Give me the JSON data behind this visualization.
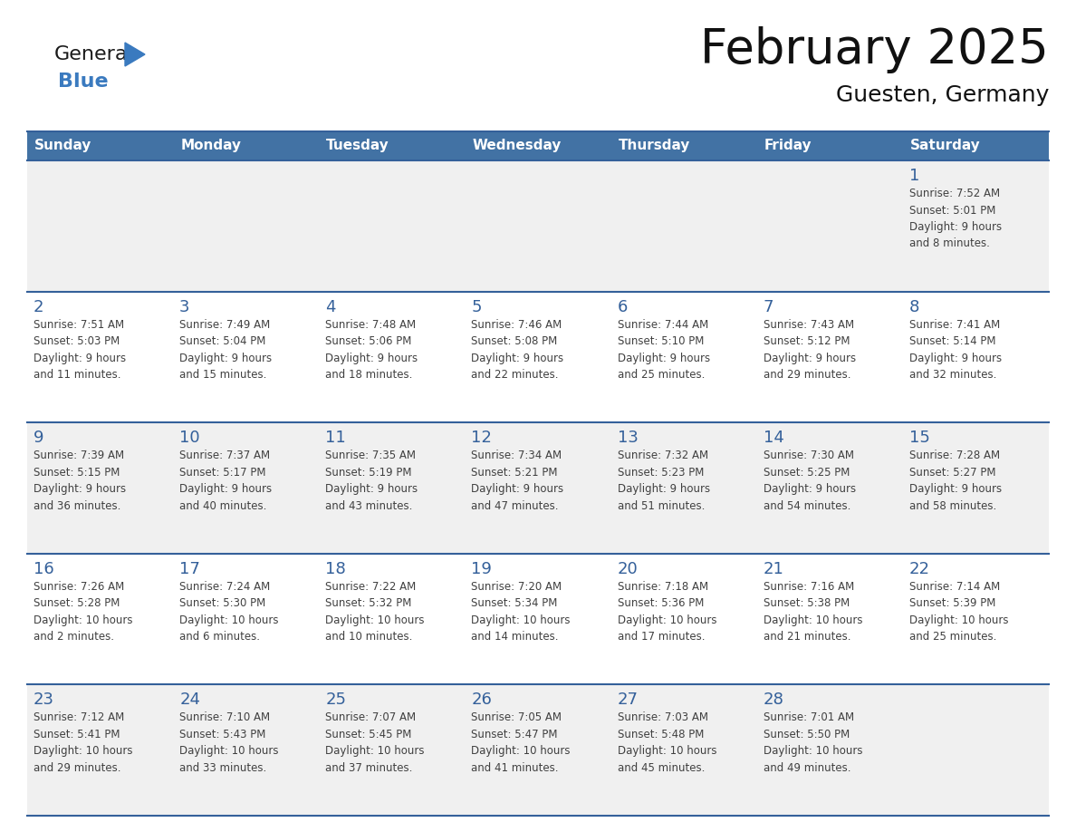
{
  "title": "February 2025",
  "subtitle": "Guesten, Germany",
  "days_of_week": [
    "Sunday",
    "Monday",
    "Tuesday",
    "Wednesday",
    "Thursday",
    "Friday",
    "Saturday"
  ],
  "header_bg": "#4272A4",
  "header_text": "#FFFFFF",
  "row_bg_odd": "#F0F0F0",
  "row_bg_even": "#FFFFFF",
  "separator_color": "#34609A",
  "day_number_color": "#34609A",
  "cell_text_color": "#404040",
  "title_color": "#111111",
  "subtitle_color": "#111111",
  "calendar_data": [
    [
      {
        "day": null,
        "info": ""
      },
      {
        "day": null,
        "info": ""
      },
      {
        "day": null,
        "info": ""
      },
      {
        "day": null,
        "info": ""
      },
      {
        "day": null,
        "info": ""
      },
      {
        "day": null,
        "info": ""
      },
      {
        "day": 1,
        "info": "Sunrise: 7:52 AM\nSunset: 5:01 PM\nDaylight: 9 hours\nand 8 minutes."
      }
    ],
    [
      {
        "day": 2,
        "info": "Sunrise: 7:51 AM\nSunset: 5:03 PM\nDaylight: 9 hours\nand 11 minutes."
      },
      {
        "day": 3,
        "info": "Sunrise: 7:49 AM\nSunset: 5:04 PM\nDaylight: 9 hours\nand 15 minutes."
      },
      {
        "day": 4,
        "info": "Sunrise: 7:48 AM\nSunset: 5:06 PM\nDaylight: 9 hours\nand 18 minutes."
      },
      {
        "day": 5,
        "info": "Sunrise: 7:46 AM\nSunset: 5:08 PM\nDaylight: 9 hours\nand 22 minutes."
      },
      {
        "day": 6,
        "info": "Sunrise: 7:44 AM\nSunset: 5:10 PM\nDaylight: 9 hours\nand 25 minutes."
      },
      {
        "day": 7,
        "info": "Sunrise: 7:43 AM\nSunset: 5:12 PM\nDaylight: 9 hours\nand 29 minutes."
      },
      {
        "day": 8,
        "info": "Sunrise: 7:41 AM\nSunset: 5:14 PM\nDaylight: 9 hours\nand 32 minutes."
      }
    ],
    [
      {
        "day": 9,
        "info": "Sunrise: 7:39 AM\nSunset: 5:15 PM\nDaylight: 9 hours\nand 36 minutes."
      },
      {
        "day": 10,
        "info": "Sunrise: 7:37 AM\nSunset: 5:17 PM\nDaylight: 9 hours\nand 40 minutes."
      },
      {
        "day": 11,
        "info": "Sunrise: 7:35 AM\nSunset: 5:19 PM\nDaylight: 9 hours\nand 43 minutes."
      },
      {
        "day": 12,
        "info": "Sunrise: 7:34 AM\nSunset: 5:21 PM\nDaylight: 9 hours\nand 47 minutes."
      },
      {
        "day": 13,
        "info": "Sunrise: 7:32 AM\nSunset: 5:23 PM\nDaylight: 9 hours\nand 51 minutes."
      },
      {
        "day": 14,
        "info": "Sunrise: 7:30 AM\nSunset: 5:25 PM\nDaylight: 9 hours\nand 54 minutes."
      },
      {
        "day": 15,
        "info": "Sunrise: 7:28 AM\nSunset: 5:27 PM\nDaylight: 9 hours\nand 58 minutes."
      }
    ],
    [
      {
        "day": 16,
        "info": "Sunrise: 7:26 AM\nSunset: 5:28 PM\nDaylight: 10 hours\nand 2 minutes."
      },
      {
        "day": 17,
        "info": "Sunrise: 7:24 AM\nSunset: 5:30 PM\nDaylight: 10 hours\nand 6 minutes."
      },
      {
        "day": 18,
        "info": "Sunrise: 7:22 AM\nSunset: 5:32 PM\nDaylight: 10 hours\nand 10 minutes."
      },
      {
        "day": 19,
        "info": "Sunrise: 7:20 AM\nSunset: 5:34 PM\nDaylight: 10 hours\nand 14 minutes."
      },
      {
        "day": 20,
        "info": "Sunrise: 7:18 AM\nSunset: 5:36 PM\nDaylight: 10 hours\nand 17 minutes."
      },
      {
        "day": 21,
        "info": "Sunrise: 7:16 AM\nSunset: 5:38 PM\nDaylight: 10 hours\nand 21 minutes."
      },
      {
        "day": 22,
        "info": "Sunrise: 7:14 AM\nSunset: 5:39 PM\nDaylight: 10 hours\nand 25 minutes."
      }
    ],
    [
      {
        "day": 23,
        "info": "Sunrise: 7:12 AM\nSunset: 5:41 PM\nDaylight: 10 hours\nand 29 minutes."
      },
      {
        "day": 24,
        "info": "Sunrise: 7:10 AM\nSunset: 5:43 PM\nDaylight: 10 hours\nand 33 minutes."
      },
      {
        "day": 25,
        "info": "Sunrise: 7:07 AM\nSunset: 5:45 PM\nDaylight: 10 hours\nand 37 minutes."
      },
      {
        "day": 26,
        "info": "Sunrise: 7:05 AM\nSunset: 5:47 PM\nDaylight: 10 hours\nand 41 minutes."
      },
      {
        "day": 27,
        "info": "Sunrise: 7:03 AM\nSunset: 5:48 PM\nDaylight: 10 hours\nand 45 minutes."
      },
      {
        "day": 28,
        "info": "Sunrise: 7:01 AM\nSunset: 5:50 PM\nDaylight: 10 hours\nand 49 minutes."
      },
      {
        "day": null,
        "info": ""
      }
    ]
  ]
}
